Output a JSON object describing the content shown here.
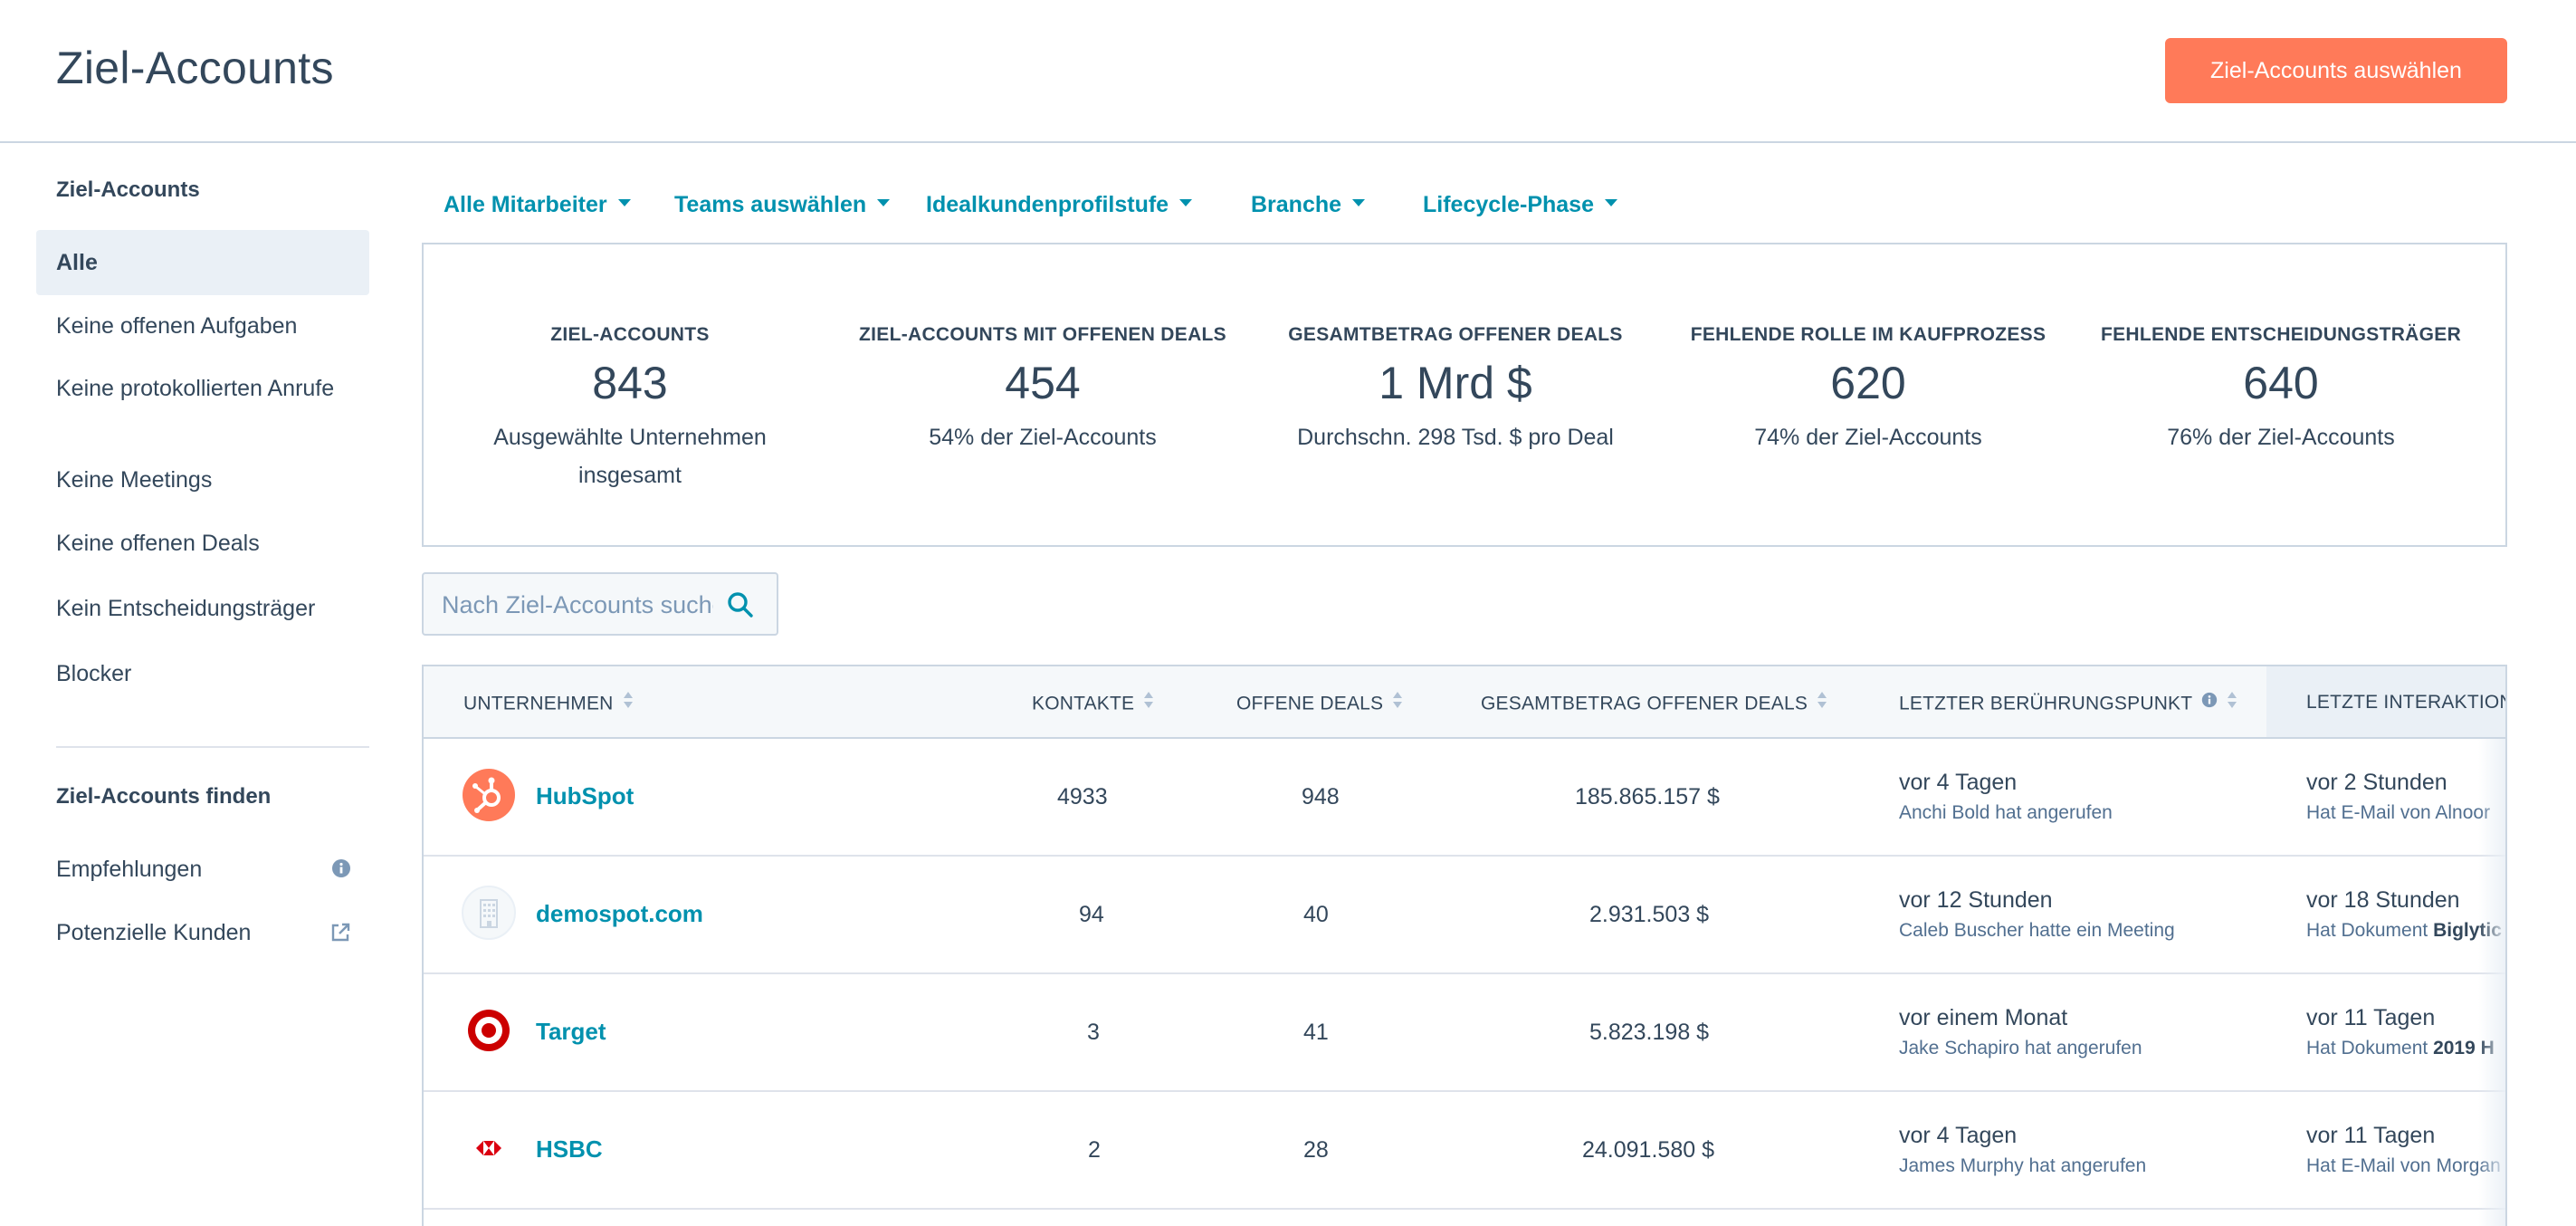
{
  "header": {
    "title": "Ziel-Accounts",
    "primary_button": "Ziel-Accounts auswählen"
  },
  "sidebar": {
    "section1_title": "Ziel-Accounts",
    "items": [
      {
        "label": "Alle"
      },
      {
        "label": "Keine offenen Aufgaben"
      },
      {
        "label": "Keine protokollierten Anrufe"
      },
      {
        "label": "Keine Meetings"
      },
      {
        "label": "Keine offenen Deals"
      },
      {
        "label": "Kein Entscheidungsträger"
      },
      {
        "label": "Blocker"
      }
    ],
    "section2_title": "Ziel-Accounts finden",
    "find_items": [
      {
        "label": "Empfehlungen",
        "icon": "info-icon"
      },
      {
        "label": "Potenzielle Kunden",
        "icon": "external-link-icon"
      }
    ]
  },
  "filters": [
    {
      "label": "Alle Mitarbeiter"
    },
    {
      "label": "Teams auswählen"
    },
    {
      "label": "Idealkundenprofilstufe"
    },
    {
      "label": "Branche"
    },
    {
      "label": "Lifecycle-Phase"
    }
  ],
  "stats": [
    {
      "label": "Ziel-Accounts",
      "value": "843",
      "sub": "Ausgewählte Unternehmen insgesamt"
    },
    {
      "label": "Ziel-Accounts mit offenen Deals",
      "value": "454",
      "sub": "54% der Ziel-Accounts"
    },
    {
      "label": "Gesamtbetrag offener Deals",
      "value": "1 Mrd $",
      "sub": "Durchschn. 298 Tsd. $ pro Deal"
    },
    {
      "label": "Fehlende Rolle im Kaufprozess",
      "value": "620",
      "sub": "74% der Ziel-Accounts"
    },
    {
      "label": "Fehlende Entscheidungsträger",
      "value": "640",
      "sub": "76% der Ziel-Accounts"
    }
  ],
  "search": {
    "placeholder": "Nach Ziel-Accounts suchen"
  },
  "table": {
    "columns": [
      {
        "label": "Unternehmen"
      },
      {
        "label": "Kontakte"
      },
      {
        "label": "Offene Deals"
      },
      {
        "label": "Gesamtbetrag offener Deals"
      },
      {
        "label": "Letzter Berührungspunkt"
      },
      {
        "label": "Letzte Interaktion"
      }
    ],
    "rows": [
      {
        "company": "HubSpot",
        "logo": "hubspot-logo",
        "contacts": "4933",
        "deals": "948",
        "amount": "185.865.157 $",
        "touch_main": "vor 4 Tagen",
        "touch_sub": "Anchi Bold hat angerufen",
        "interaction_main": "vor 2 Stunden",
        "interaction_sub": "Hat E-Mail von Alnoor"
      },
      {
        "company": "demospot.com",
        "logo": "building-icon",
        "contacts": "94",
        "deals": "40",
        "amount": "2.931.503 $",
        "touch_main": "vor 12 Stunden",
        "touch_sub": "Caleb Buscher hatte ein Meeting",
        "interaction_main": "vor 18 Stunden",
        "interaction_sub_prefix": "Hat Dokument",
        "interaction_sub_bold": "Biglytic"
      },
      {
        "company": "Target",
        "logo": "target-logo",
        "contacts": "3",
        "deals": "41",
        "amount": "5.823.198 $",
        "touch_main": "vor einem Monat",
        "touch_sub": "Jake Schapiro hat angerufen",
        "interaction_main": "vor 11 Tagen",
        "interaction_sub_prefix": "Hat Dokument",
        "interaction_sub_bold": "2019 H"
      },
      {
        "company": "HSBC",
        "logo": "hsbc-logo",
        "contacts": "2",
        "deals": "28",
        "amount": "24.091.580 $",
        "touch_main": "vor 4 Tagen",
        "touch_sub": "James Murphy hat angerufen",
        "interaction_main": "vor 11 Tagen",
        "interaction_sub": "Hat E-Mail von Morgan"
      }
    ]
  },
  "colors": {
    "accent": "#0091ae",
    "primary_button": "#ff7a59",
    "text": "#33475b",
    "border": "#cbd6e2"
  }
}
